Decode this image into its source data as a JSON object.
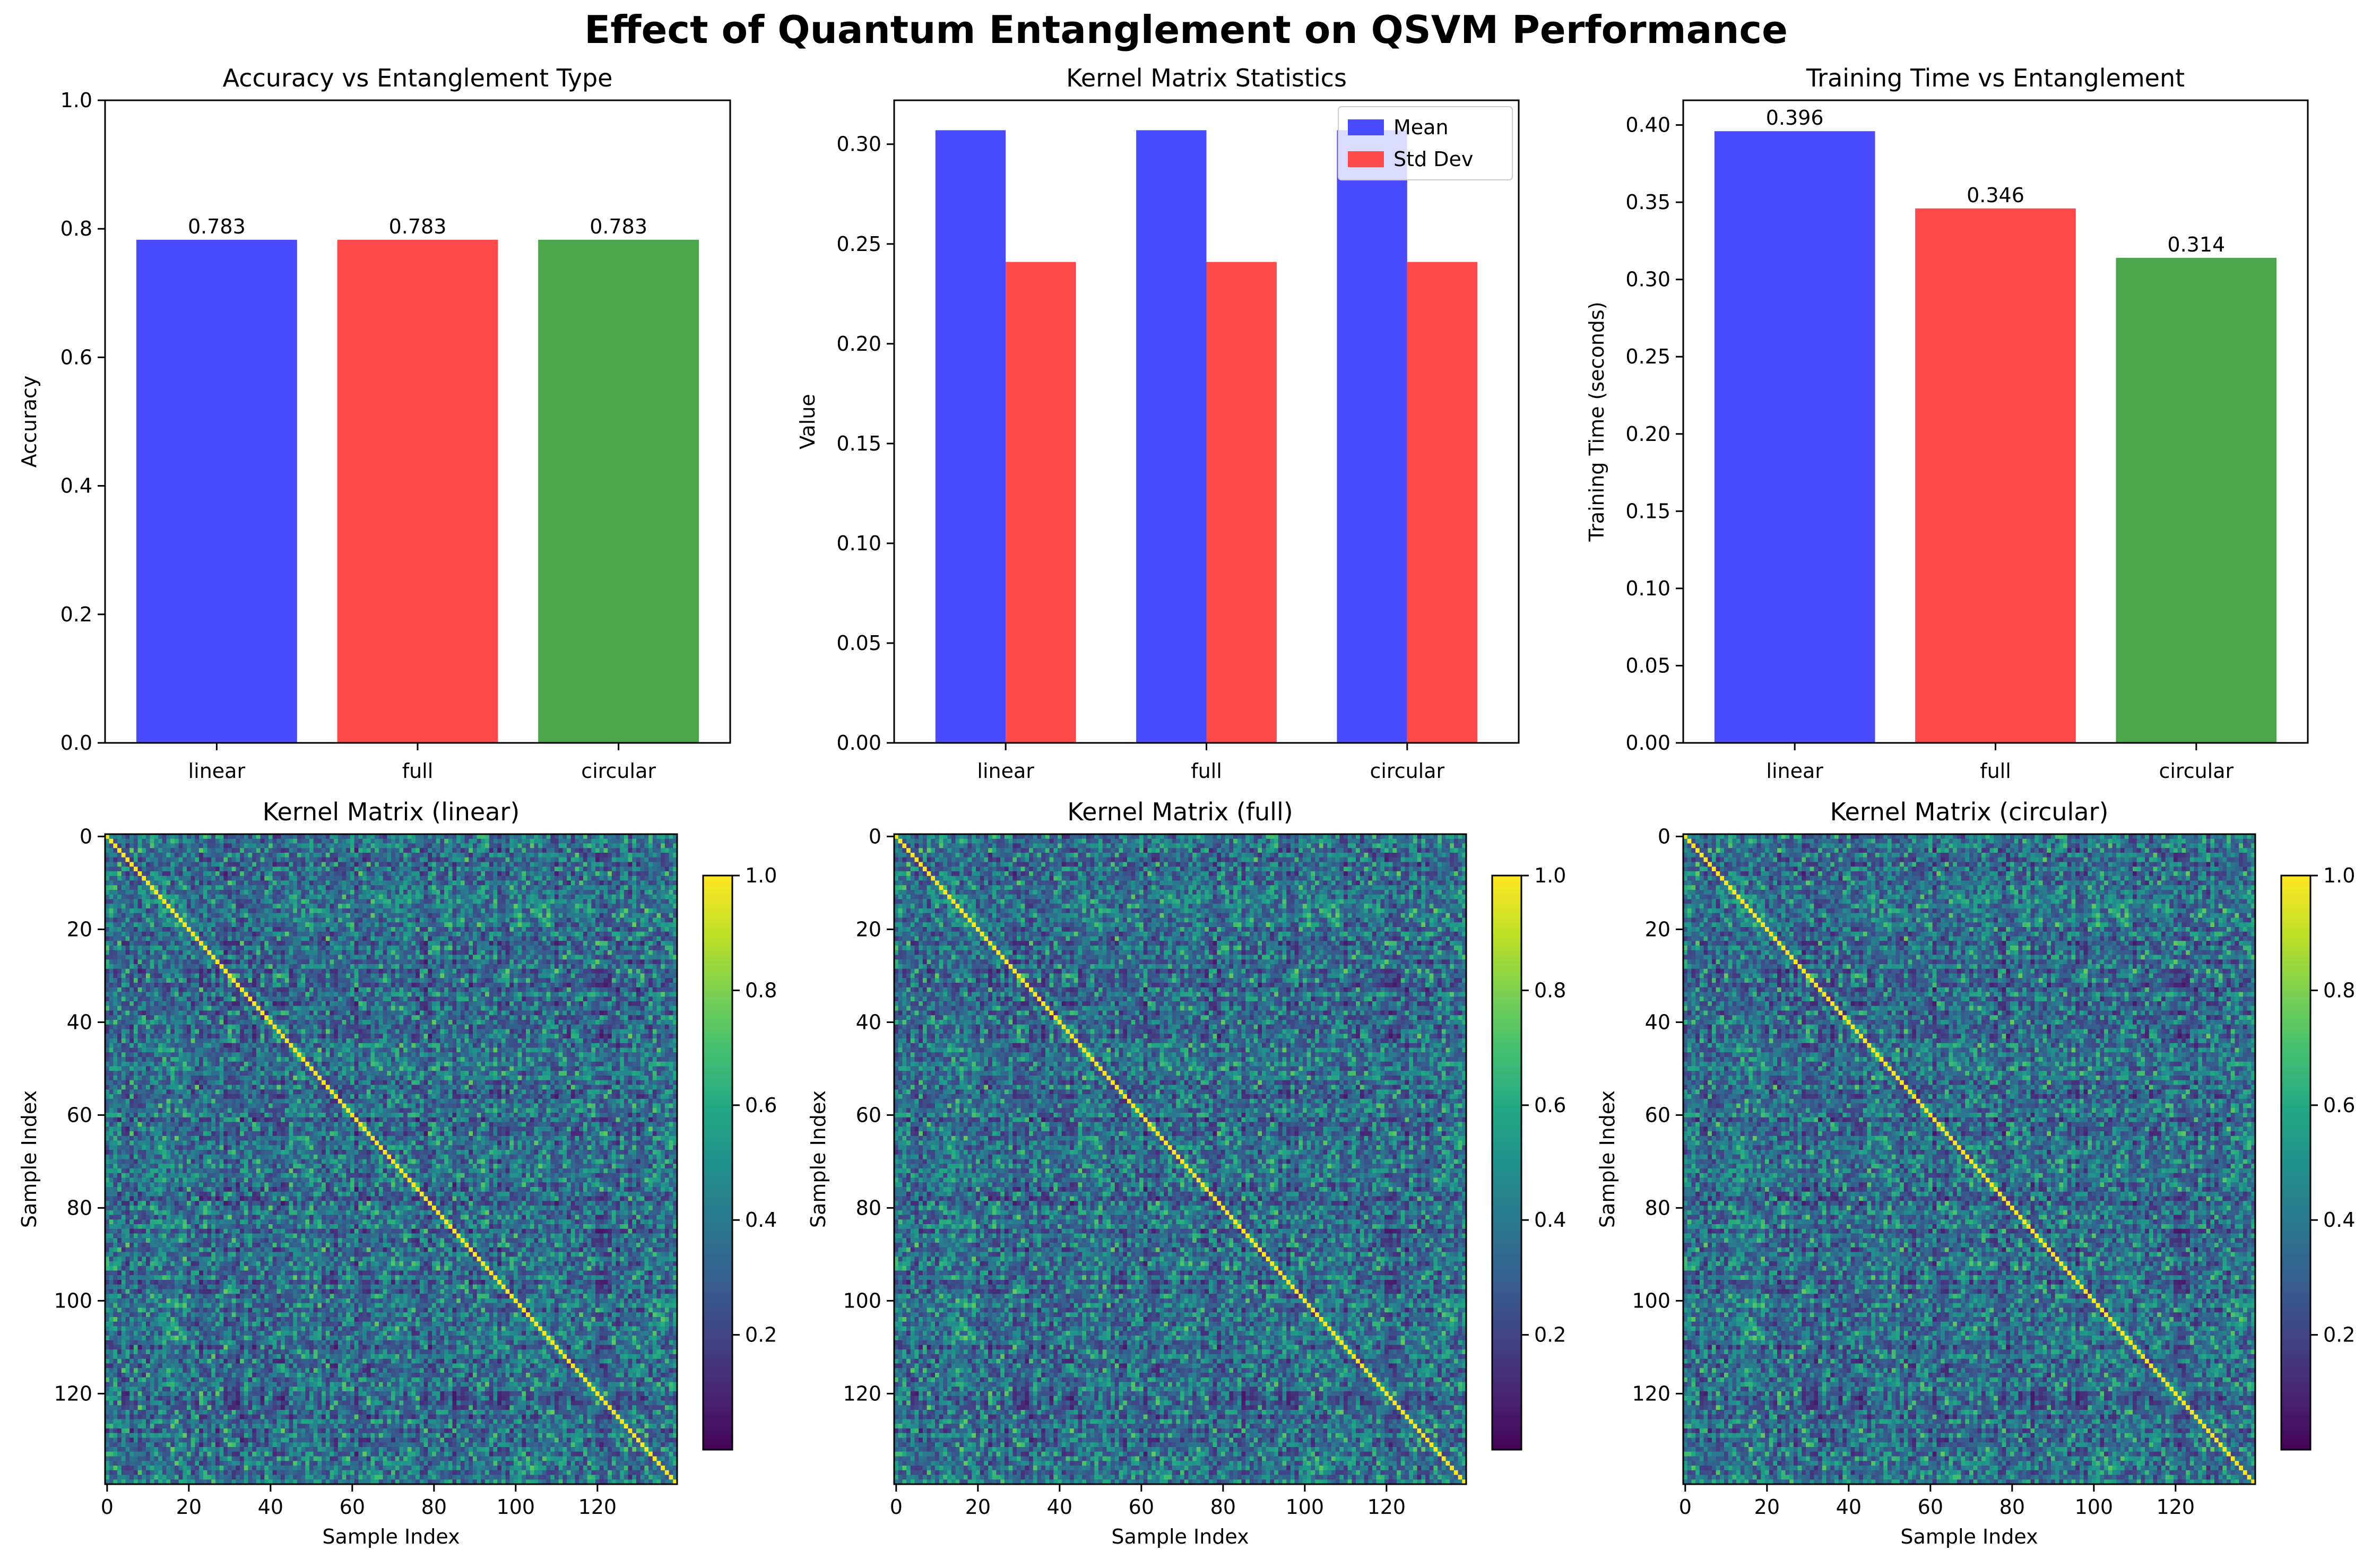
{
  "figure_title": "Effect of Quantum Entanglement on QSVM Performance",
  "colors": {
    "blue": "#4a4afe",
    "red": "#fe4a4a",
    "green": "#4ca64c",
    "colormap": "viridis"
  },
  "chart_data": [
    {
      "type": "bar",
      "title": "Accuracy vs Entanglement Type",
      "xlabel": "",
      "ylabel": "Accuracy",
      "categories": [
        "linear",
        "full",
        "circular"
      ],
      "values": [
        0.783,
        0.783,
        0.783
      ],
      "data_labels": [
        "0.783",
        "0.783",
        "0.783"
      ],
      "bar_colors": [
        "#4a4afe",
        "#fe4a4a",
        "#4ca64c"
      ],
      "ylim": [
        0,
        1.0
      ],
      "yticks": [
        "0.0",
        "0.2",
        "0.4",
        "0.6",
        "0.8",
        "1.0"
      ]
    },
    {
      "type": "bar",
      "title": "Kernel Matrix Statistics",
      "xlabel": "",
      "ylabel": "Value",
      "categories": [
        "linear",
        "full",
        "circular"
      ],
      "series": [
        {
          "name": "Mean",
          "values": [
            0.307,
            0.307,
            0.307
          ],
          "color": "#4a4afe"
        },
        {
          "name": "Std Dev",
          "values": [
            0.241,
            0.241,
            0.241
          ],
          "color": "#fe4a4a"
        }
      ],
      "legend_position": "top-right",
      "ylim": [
        0,
        0.322
      ],
      "yticks": [
        "0.00",
        "0.05",
        "0.10",
        "0.15",
        "0.20",
        "0.25",
        "0.30"
      ]
    },
    {
      "type": "bar",
      "title": "Training Time vs Entanglement",
      "xlabel": "",
      "ylabel": "Training Time (seconds)",
      "categories": [
        "linear",
        "full",
        "circular"
      ],
      "values": [
        0.396,
        0.346,
        0.314
      ],
      "data_labels": [
        "0.396",
        "0.346",
        "0.314"
      ],
      "bar_colors": [
        "#4a4afe",
        "#fe4a4a",
        "#4ca64c"
      ],
      "ylim": [
        0,
        0.416
      ],
      "yticks": [
        "0.00",
        "0.05",
        "0.10",
        "0.15",
        "0.20",
        "0.25",
        "0.30",
        "0.35",
        "0.40"
      ]
    },
    {
      "type": "heatmap",
      "title": "Kernel Matrix (linear)",
      "xlabel": "Sample Index",
      "ylabel": "Sample Index",
      "size": 140,
      "ticks": [
        "0",
        "20",
        "40",
        "60",
        "80",
        "100",
        "120"
      ],
      "colorbar_ticks": [
        "0.2",
        "0.4",
        "0.6",
        "0.8",
        "1.0"
      ],
      "colorbar_range": [
        0.0,
        1.0
      ],
      "diagonal_value": 1.0,
      "seed": 11
    },
    {
      "type": "heatmap",
      "title": "Kernel Matrix (full)",
      "xlabel": "Sample Index",
      "ylabel": "Sample Index",
      "size": 140,
      "ticks": [
        "0",
        "20",
        "40",
        "60",
        "80",
        "100",
        "120"
      ],
      "colorbar_ticks": [
        "0.2",
        "0.4",
        "0.6",
        "0.8",
        "1.0"
      ],
      "colorbar_range": [
        0.0,
        1.0
      ],
      "diagonal_value": 1.0,
      "seed": 11
    },
    {
      "type": "heatmap",
      "title": "Kernel Matrix (circular)",
      "xlabel": "Sample Index",
      "ylabel": "Sample Index",
      "size": 140,
      "ticks": [
        "0",
        "20",
        "40",
        "60",
        "80",
        "100",
        "120"
      ],
      "colorbar_ticks": [
        "0.2",
        "0.4",
        "0.6",
        "0.8",
        "1.0"
      ],
      "colorbar_range": [
        0.0,
        1.0
      ],
      "diagonal_value": 1.0,
      "seed": 11
    }
  ]
}
